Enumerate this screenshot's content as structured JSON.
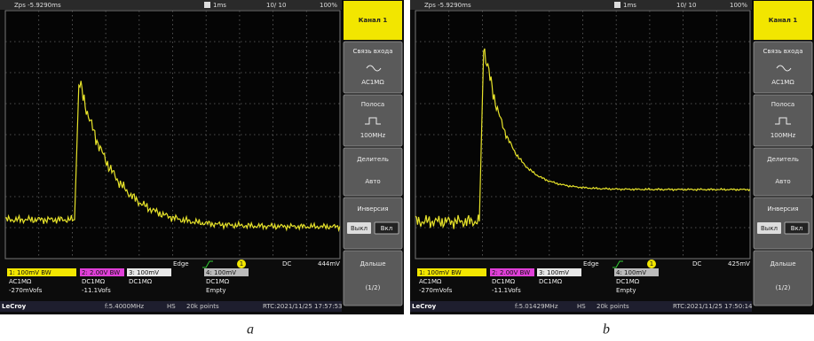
{
  "panels": [
    {
      "status": {
        "position": "Zps -5.9290ms",
        "timebase": "1ms",
        "acquisition": "10/ 10",
        "zoom": "100%"
      },
      "menu": {
        "title": "Канал 1",
        "coupling": {
          "label": "Связь входа",
          "value": "AC1MΩ"
        },
        "bandwidth": {
          "label": "Полоса",
          "value": "100MHz"
        },
        "probe": {
          "label": "Делитель",
          "value": "Авто"
        },
        "invert": {
          "label": "Инверсия",
          "off": "Выкл",
          "on": "Вкл"
        },
        "more": {
          "label": "Дальше",
          "value": "(1/2)"
        }
      },
      "trigger": {
        "mode": "Edge",
        "source": "1",
        "coupling": "DC",
        "level": "444mV"
      },
      "channels": [
        {
          "label": "1: 100mV BW",
          "coupling": "AC1MΩ",
          "offset": "-270mVofs"
        },
        {
          "label": "2: 2.00V BW",
          "coupling": "DC1MΩ",
          "offset": "-11.1Vofs"
        },
        {
          "label": "3: 100mV",
          "coupling": "DC1MΩ"
        },
        {
          "label": "4: 100mV",
          "coupling": "DC1MΩ",
          "offset": "Empty"
        }
      ],
      "footer": {
        "brand": "LeCroy",
        "frequency": "f:5.4000MHz",
        "mode": "HS",
        "points": "20k points",
        "rtc": "RTC:2021/11/25 17:57:53"
      },
      "caption": "a"
    },
    {
      "status": {
        "position": "Zps -5.9290ms",
        "timebase": "1ms",
        "acquisition": "10/ 10",
        "zoom": "100%"
      },
      "menu": {
        "title": "Канал 1",
        "coupling": {
          "label": "Связь входа",
          "value": "AC1MΩ"
        },
        "bandwidth": {
          "label": "Полоса",
          "value": "100MHz"
        },
        "probe": {
          "label": "Делитель",
          "value": "Авто"
        },
        "invert": {
          "label": "Инверсия",
          "off": "Выкл",
          "on": "Вкл"
        },
        "more": {
          "label": "Дальше",
          "value": "(1/2)"
        }
      },
      "trigger": {
        "mode": "Edge",
        "source": "1",
        "coupling": "DC",
        "level": "425mV"
      },
      "channels": [
        {
          "label": "1: 100mV BW",
          "coupling": "AC1MΩ",
          "offset": "-270mVofs"
        },
        {
          "label": "2: 2.00V BW",
          "coupling": "DC1MΩ",
          "offset": "-11.1Vofs"
        },
        {
          "label": "3: 100mV",
          "coupling": "DC1MΩ"
        },
        {
          "label": "4: 100mV",
          "coupling": "DC1MΩ",
          "offset": "Empty"
        }
      ],
      "footer": {
        "brand": "LeCroy",
        "frequency": "f:5.01429MHz",
        "mode": "HS",
        "points": "20k points",
        "rtc": "RTC:2021/11/25 17:50:14"
      },
      "caption": "b"
    }
  ]
}
